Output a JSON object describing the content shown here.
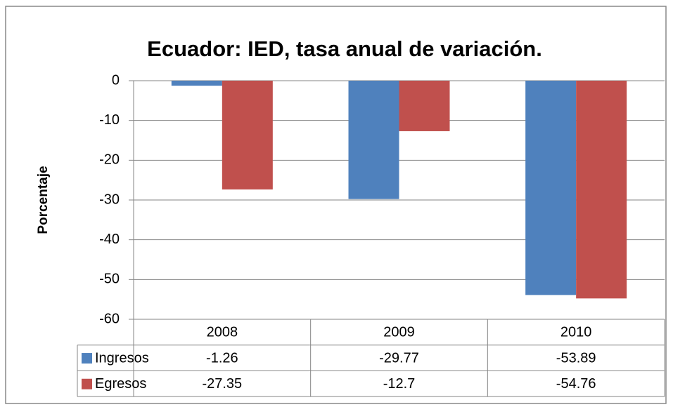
{
  "chart_data": {
    "type": "bar",
    "title": "Ecuador: IED, tasa anual de variación.",
    "y_label": "Porcentaje",
    "categories": [
      "2008",
      "2009",
      "2010"
    ],
    "series": [
      {
        "name": "Ingresos",
        "color": "#4f81bd",
        "values": [
          -1.26,
          -29.77,
          -53.89
        ]
      },
      {
        "name": "Egresos",
        "color": "#c0504d",
        "values": [
          -27.35,
          -12.7,
          -54.76
        ]
      }
    ],
    "ylim": [
      -60,
      0
    ],
    "yticks": [
      0,
      -10,
      -20,
      -30,
      -40,
      -50,
      -60
    ],
    "grid": true,
    "data_table": true
  }
}
